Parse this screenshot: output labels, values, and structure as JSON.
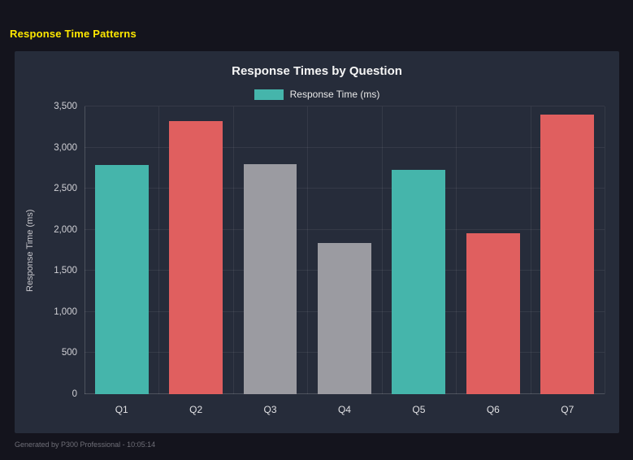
{
  "page": {
    "title": "Response Time Patterns",
    "footer": "Generated by P300 Professional - 10:05:14"
  },
  "colors": {
    "page_bg": "#14141d",
    "panel_bg": "#262c3a",
    "accent_yellow": "#ffe800",
    "teal": "#45b5ab",
    "red": "#e05f5f",
    "gray": "#9b9ba1"
  },
  "chart_data": {
    "type": "bar",
    "title": "Response Times by Question",
    "categories": [
      "Q1",
      "Q2",
      "Q3",
      "Q4",
      "Q5",
      "Q6",
      "Q7"
    ],
    "values": [
      2790,
      3320,
      2800,
      1840,
      2725,
      1955,
      3400
    ],
    "bar_colors": [
      "#45b5ab",
      "#e05f5f",
      "#9b9ba1",
      "#9b9ba1",
      "#45b5ab",
      "#e05f5f",
      "#e05f5f"
    ],
    "legend": [
      "Response Time (ms)"
    ],
    "legend_color": "#45b5ab",
    "legend_position": "top",
    "xlabel": "",
    "ylabel": "Response Time (ms)",
    "ylim": [
      0,
      3500
    ],
    "yticks": [
      0,
      500,
      1000,
      1500,
      2000,
      2500,
      3000,
      3500
    ],
    "ytick_labels": [
      "0",
      "500",
      "1,000",
      "1,500",
      "2,000",
      "2,500",
      "3,000",
      "3,500"
    ],
    "grid": true
  }
}
